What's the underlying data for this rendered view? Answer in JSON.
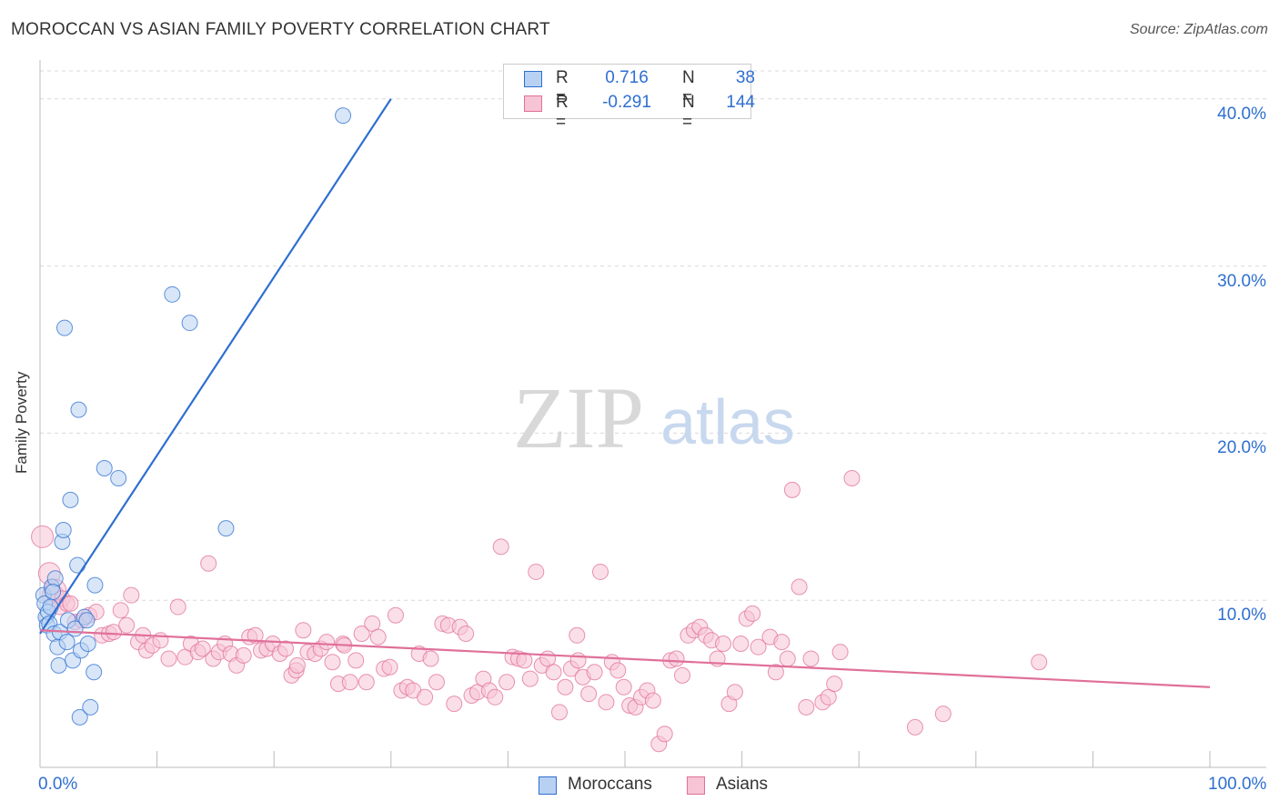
{
  "title": "MOROCCAN VS ASIAN FAMILY POVERTY CORRELATION CHART",
  "source": "Source: ZipAtlas.com",
  "watermark": {
    "zip": "ZIP",
    "atlas": "atlas"
  },
  "colors": {
    "blue": "#2e6fd0",
    "blue_fill": "#b8d1f3",
    "pink": "#e07099",
    "pink_fill": "#f7c4d5",
    "axis_text": "#2e6fd0",
    "grid": "#d9d9d9"
  },
  "legend": {
    "rows": [
      {
        "r_label": "R =",
        "r_value": "0.716",
        "n_label": "N =",
        "n_value": "38"
      },
      {
        "r_label": "R =",
        "r_value": "-0.291",
        "n_label": "N =",
        "n_value": "144"
      }
    ]
  },
  "chart_data": {
    "type": "scatter",
    "title": "MOROCCAN VS ASIAN FAMILY POVERTY CORRELATION CHART",
    "xlabel": "",
    "ylabel": "Family Poverty",
    "xlim": [
      0,
      100
    ],
    "ylim": [
      0,
      42
    ],
    "x_tick_labels": [
      "0.0%",
      "100.0%"
    ],
    "y_ticks": [
      10,
      20,
      30,
      40
    ],
    "y_tick_labels": [
      "10.0%",
      "20.0%",
      "30.0%",
      "40.0%"
    ],
    "grid": true,
    "legend_position": "top-center",
    "series": [
      {
        "name": "Moroccans",
        "color": "#2e6fd0",
        "r": 0.716,
        "n": 38,
        "trend": {
          "x": [
            0,
            30
          ],
          "y": [
            8.0,
            40.0
          ]
        },
        "points": [
          [
            0.3,
            10.3
          ],
          [
            0.4,
            9.8
          ],
          [
            0.5,
            9.0
          ],
          [
            0.6,
            8.5
          ],
          [
            0.7,
            9.3
          ],
          [
            0.8,
            8.6
          ],
          [
            1.0,
            10.8
          ],
          [
            1.2,
            8.0
          ],
          [
            1.3,
            11.3
          ],
          [
            1.5,
            7.2
          ],
          [
            1.6,
            6.1
          ],
          [
            1.7,
            8.1
          ],
          [
            1.9,
            13.5
          ],
          [
            2.0,
            14.2
          ],
          [
            2.1,
            26.3
          ],
          [
            2.3,
            7.5
          ],
          [
            2.4,
            8.8
          ],
          [
            2.6,
            16.0
          ],
          [
            2.8,
            6.4
          ],
          [
            3.0,
            8.3
          ],
          [
            3.2,
            12.1
          ],
          [
            3.3,
            21.4
          ],
          [
            3.5,
            7.0
          ],
          [
            3.4,
            3.0
          ],
          [
            3.8,
            9.0
          ],
          [
            4.0,
            8.8
          ],
          [
            4.1,
            7.4
          ],
          [
            4.3,
            3.6
          ],
          [
            4.6,
            5.7
          ],
          [
            4.7,
            10.9
          ],
          [
            5.5,
            17.9
          ],
          [
            6.7,
            17.3
          ],
          [
            11.3,
            28.3
          ],
          [
            12.8,
            26.6
          ],
          [
            15.9,
            14.3
          ],
          [
            25.9,
            39.0
          ],
          [
            1.1,
            10.5
          ],
          [
            0.9,
            9.6
          ]
        ]
      },
      {
        "name": "Asians",
        "color": "#e07099",
        "r": -0.291,
        "n": 144,
        "trend": {
          "x": [
            0,
            100
          ],
          "y": [
            8.2,
            4.8
          ]
        },
        "points": [
          [
            0.2,
            13.8
          ],
          [
            0.8,
            11.6
          ],
          [
            1.1,
            10.3
          ],
          [
            1.3,
            10.6
          ],
          [
            1.7,
            9.6
          ],
          [
            1.9,
            10.1
          ],
          [
            2.3,
            9.8
          ],
          [
            2.6,
            9.8
          ],
          [
            3.0,
            8.7
          ],
          [
            3.6,
            8.8
          ],
          [
            4.2,
            9.1
          ],
          [
            4.8,
            9.3
          ],
          [
            5.3,
            7.9
          ],
          [
            5.9,
            8.0
          ],
          [
            6.3,
            8.1
          ],
          [
            6.9,
            9.4
          ],
          [
            7.4,
            8.5
          ],
          [
            7.8,
            10.3
          ],
          [
            8.4,
            7.5
          ],
          [
            8.8,
            7.9
          ],
          [
            9.1,
            7.0
          ],
          [
            9.6,
            7.3
          ],
          [
            10.3,
            7.6
          ],
          [
            11.0,
            6.5
          ],
          [
            11.8,
            9.6
          ],
          [
            12.4,
            6.6
          ],
          [
            12.9,
            7.4
          ],
          [
            13.5,
            6.9
          ],
          [
            13.9,
            7.1
          ],
          [
            14.4,
            12.2
          ],
          [
            14.8,
            6.5
          ],
          [
            15.3,
            6.9
          ],
          [
            15.8,
            7.4
          ],
          [
            16.3,
            6.8
          ],
          [
            16.8,
            6.1
          ],
          [
            17.4,
            6.7
          ],
          [
            17.9,
            7.8
          ],
          [
            18.4,
            7.9
          ],
          [
            18.9,
            7.0
          ],
          [
            19.4,
            7.1
          ],
          [
            19.9,
            7.4
          ],
          [
            20.5,
            6.8
          ],
          [
            21.0,
            7.1
          ],
          [
            21.5,
            5.5
          ],
          [
            21.9,
            5.8
          ],
          [
            22.5,
            8.2
          ],
          [
            22.9,
            6.9
          ],
          [
            23.5,
            6.8
          ],
          [
            24.0,
            7.1
          ],
          [
            24.5,
            7.5
          ],
          [
            25.0,
            6.3
          ],
          [
            25.5,
            5.0
          ],
          [
            25.9,
            7.4
          ],
          [
            26.5,
            5.1
          ],
          [
            27.0,
            6.4
          ],
          [
            27.5,
            8.0
          ],
          [
            27.9,
            5.1
          ],
          [
            28.4,
            8.6
          ],
          [
            28.9,
            7.8
          ],
          [
            29.4,
            5.9
          ],
          [
            29.9,
            6.0
          ],
          [
            30.4,
            9.1
          ],
          [
            30.9,
            4.6
          ],
          [
            31.4,
            4.8
          ],
          [
            31.9,
            4.6
          ],
          [
            32.4,
            6.8
          ],
          [
            32.9,
            4.2
          ],
          [
            33.4,
            6.5
          ],
          [
            33.9,
            5.1
          ],
          [
            34.4,
            8.6
          ],
          [
            34.9,
            8.5
          ],
          [
            35.4,
            3.8
          ],
          [
            35.9,
            8.4
          ],
          [
            36.4,
            8.0
          ],
          [
            36.9,
            4.3
          ],
          [
            37.4,
            4.5
          ],
          [
            37.9,
            5.3
          ],
          [
            38.4,
            4.6
          ],
          [
            38.9,
            4.2
          ],
          [
            39.4,
            13.2
          ],
          [
            39.9,
            5.1
          ],
          [
            40.4,
            6.6
          ],
          [
            40.9,
            6.5
          ],
          [
            41.4,
            6.4
          ],
          [
            41.9,
            5.3
          ],
          [
            42.4,
            11.7
          ],
          [
            42.9,
            6.1
          ],
          [
            43.4,
            6.5
          ],
          [
            43.9,
            5.7
          ],
          [
            44.4,
            3.3
          ],
          [
            44.9,
            4.8
          ],
          [
            45.4,
            5.9
          ],
          [
            45.9,
            7.9
          ],
          [
            46.4,
            5.4
          ],
          [
            46.9,
            4.4
          ],
          [
            47.4,
            5.7
          ],
          [
            47.9,
            11.7
          ],
          [
            48.4,
            3.9
          ],
          [
            48.9,
            6.3
          ],
          [
            49.4,
            5.8
          ],
          [
            49.9,
            4.8
          ],
          [
            50.4,
            3.7
          ],
          [
            50.9,
            3.6
          ],
          [
            51.4,
            4.2
          ],
          [
            51.9,
            4.6
          ],
          [
            52.4,
            4.0
          ],
          [
            52.9,
            1.4
          ],
          [
            53.4,
            2.0
          ],
          [
            53.9,
            6.4
          ],
          [
            54.4,
            6.5
          ],
          [
            54.9,
            5.5
          ],
          [
            55.4,
            7.9
          ],
          [
            55.9,
            8.2
          ],
          [
            56.4,
            8.4
          ],
          [
            56.9,
            7.9
          ],
          [
            57.4,
            7.6
          ],
          [
            57.9,
            6.5
          ],
          [
            58.4,
            7.4
          ],
          [
            58.9,
            3.8
          ],
          [
            59.4,
            4.5
          ],
          [
            59.9,
            7.4
          ],
          [
            60.4,
            8.9
          ],
          [
            60.9,
            9.2
          ],
          [
            61.4,
            7.2
          ],
          [
            62.4,
            7.8
          ],
          [
            62.9,
            5.7
          ],
          [
            63.4,
            7.5
          ],
          [
            63.9,
            6.5
          ],
          [
            64.3,
            16.6
          ],
          [
            64.9,
            10.8
          ],
          [
            65.5,
            3.6
          ],
          [
            65.9,
            6.5
          ],
          [
            66.9,
            3.9
          ],
          [
            67.4,
            4.2
          ],
          [
            67.9,
            5.0
          ],
          [
            68.4,
            6.9
          ],
          [
            69.4,
            17.3
          ],
          [
            74.8,
            2.4
          ],
          [
            77.2,
            3.2
          ],
          [
            85.4,
            6.3
          ],
          [
            22.0,
            6.1
          ],
          [
            46.0,
            6.4
          ],
          [
            26.0,
            7.3
          ]
        ]
      }
    ]
  },
  "bottom_legend": [
    {
      "label": "Moroccans"
    },
    {
      "label": "Asians"
    }
  ]
}
